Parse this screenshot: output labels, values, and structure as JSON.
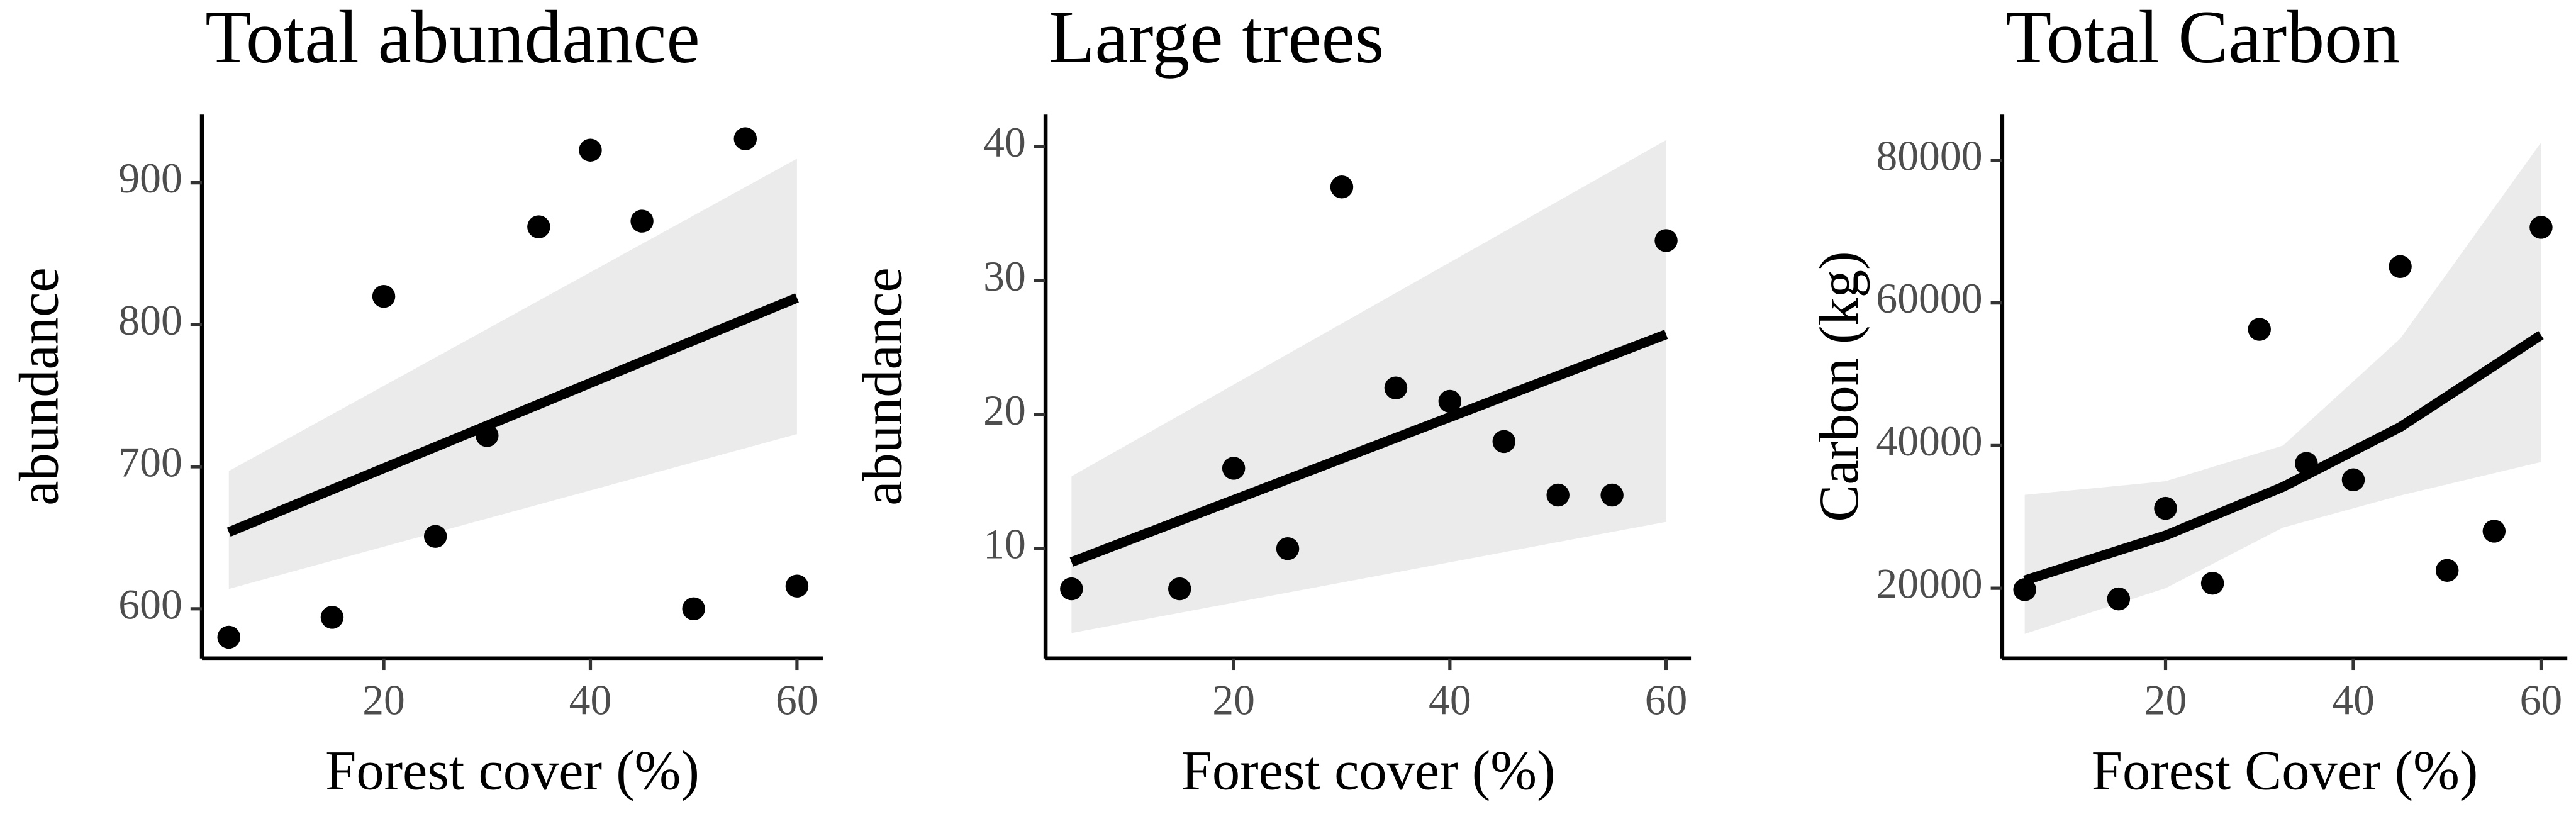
{
  "chart_data": [
    {
      "type": "scatter",
      "title": "Total abundance",
      "x_label": "Forest cover (%)",
      "y_label": "abundance",
      "x": [
        5,
        15,
        20,
        25,
        30,
        35,
        40,
        45,
        50,
        55,
        60
      ],
      "values": [
        580,
        594,
        820,
        651,
        722,
        869,
        923,
        873,
        600,
        931,
        616
      ],
      "fit": {
        "x": [
          5,
          60
        ],
        "values": [
          654,
          819
        ]
      },
      "band": {
        "x": [
          5,
          60
        ],
        "lower": [
          614,
          723
        ],
        "upper": [
          697,
          917
        ]
      },
      "xlim": [
        2.4,
        62.5
      ],
      "ylim": [
        565,
        948
      ],
      "xticks": [
        20,
        40,
        60
      ],
      "yticks": [
        600,
        700,
        800,
        900
      ]
    },
    {
      "type": "scatter",
      "title": "Large trees",
      "x_label": "Forest cover (%)",
      "y_label": "abundance",
      "x": [
        5,
        15,
        20,
        25,
        30,
        35,
        40,
        45,
        50,
        55,
        60
      ],
      "values": [
        7,
        7,
        16,
        10,
        37,
        22,
        21,
        18,
        14,
        14,
        33
      ],
      "fit": {
        "x": [
          5,
          60
        ],
        "values": [
          9,
          26
        ]
      },
      "band": {
        "x": [
          5,
          60
        ],
        "lower": [
          3.7,
          12
        ],
        "upper": [
          15.4,
          40.5
        ]
      },
      "xlim": [
        2.6,
        62.3
      ],
      "ylim": [
        1.8,
        42.4
      ],
      "xticks": [
        20,
        40,
        60
      ],
      "yticks": [
        10,
        20,
        30,
        40
      ]
    },
    {
      "type": "scatter",
      "title": "Total Carbon",
      "x_label": "Forest Cover (%)",
      "y_label": "Carbon (kg)",
      "x": [
        5,
        15,
        20,
        25,
        30,
        35,
        40,
        45,
        50,
        55,
        60
      ],
      "values": [
        19800,
        18500,
        31200,
        20700,
        56300,
        37500,
        35200,
        65100,
        22500,
        28000,
        70600
      ],
      "fit": {
        "x": [
          5,
          20,
          32.5,
          45,
          60
        ],
        "values": [
          21100,
          27400,
          34200,
          42600,
          55500
        ]
      },
      "band": {
        "x": [
          5,
          20,
          32.5,
          45,
          60
        ],
        "lower": [
          13600,
          20000,
          28500,
          33000,
          37700
        ],
        "upper": [
          33100,
          35000,
          40000,
          55000,
          82500
        ]
      },
      "xlim": [
        2.6,
        62.8
      ],
      "ylim": [
        10150,
        86400
      ],
      "xticks": [
        20,
        40,
        60
      ],
      "yticks": [
        20000,
        40000,
        60000,
        80000
      ]
    }
  ]
}
